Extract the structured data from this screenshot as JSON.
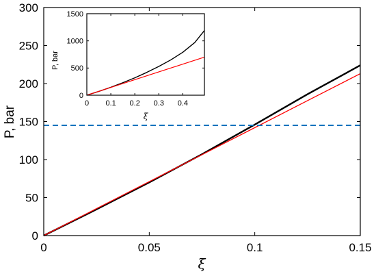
{
  "chart_data": [
    {
      "type": "line",
      "xlabel": "ξ",
      "ylabel": "P, bar",
      "xlim": [
        0,
        0.15
      ],
      "ylim": [
        0,
        300
      ],
      "xticks": [
        0,
        0.05,
        0.1,
        0.15
      ],
      "xtick_labels": [
        "0",
        "0.05",
        "0.1",
        "0.15"
      ],
      "yticks": [
        0,
        50,
        100,
        150,
        200,
        250,
        300
      ],
      "ytick_labels": [
        "0",
        "50",
        "100",
        "150",
        "200",
        "250",
        "300"
      ],
      "grid": false,
      "series": [
        {
          "color": "#000000",
          "style": "solid",
          "x": [
            0,
            0.025,
            0.05,
            0.075,
            0.1,
            0.125,
            0.15
          ],
          "y": [
            0,
            34.5,
            70,
            107,
            146,
            186,
            224
          ]
        },
        {
          "color": "#ff0000",
          "style": "solid",
          "x": [
            0,
            0.025,
            0.05,
            0.075,
            0.1,
            0.125,
            0.15
          ],
          "y": [
            0,
            35.5,
            71,
            106.5,
            142,
            177.5,
            213
          ]
        },
        {
          "color": "#0072bd",
          "style": "dashed",
          "x": [
            0,
            0.15
          ],
          "y": [
            145,
            145
          ]
        }
      ]
    },
    {
      "type": "line",
      "inset": true,
      "xlabel": "ξ",
      "ylabel": "P, bar",
      "xlim": [
        0,
        0.49
      ],
      "ylim": [
        0,
        1500
      ],
      "xticks": [
        0,
        0.1,
        0.2,
        0.3,
        0.4
      ],
      "xtick_labels": [
        "0",
        "0.1",
        "0.2",
        "0.3",
        "0.4"
      ],
      "yticks": [
        0,
        500,
        1000,
        1500
      ],
      "ytick_labels": [
        "0",
        "500",
        "1000",
        "1500"
      ],
      "grid": false,
      "series": [
        {
          "color": "#000000",
          "style": "solid",
          "x": [
            0,
            0.05,
            0.1,
            0.15,
            0.2,
            0.25,
            0.3,
            0.35,
            0.4,
            0.45,
            0.49
          ],
          "y": [
            0,
            70,
            146,
            230,
            320,
            420,
            530,
            650,
            790,
            970,
            1190
          ]
        },
        {
          "color": "#ff0000",
          "style": "solid",
          "x": [
            0,
            0.49
          ],
          "y": [
            0,
            700
          ]
        }
      ]
    }
  ]
}
